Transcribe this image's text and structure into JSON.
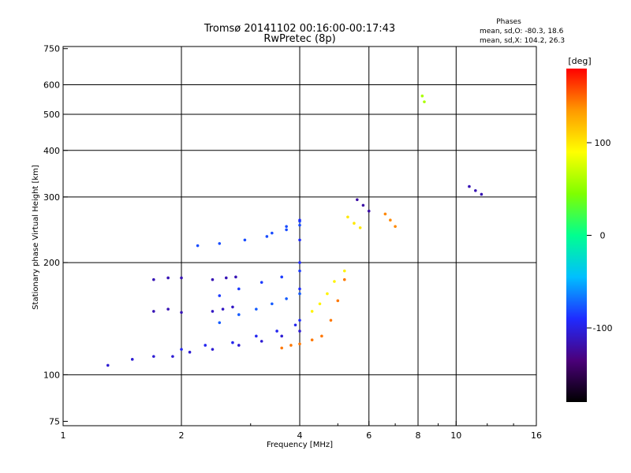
{
  "title_line1": "Tromsø 20141102 00:16:00-00:17:43",
  "title_line2": "RwPretec (8p)",
  "phase_box": {
    "heading": "Phases",
    "line1": "mean, sd,O: -80.3, 18.6",
    "line2": "mean, sd,X: 104.2, 26.3"
  },
  "chart_data": {
    "type": "scatter",
    "xlabel": "Frequency [MHz]",
    "ylabel": "Stationary phase Virtual Height [km]",
    "x_scale": "log",
    "y_scale": "log",
    "xlim": [
      1,
      16
    ],
    "ylim": [
      73,
      760
    ],
    "x_ticks": [
      1,
      2,
      4,
      6,
      8,
      10,
      16
    ],
    "x_tick_labels": [
      "1",
      "2",
      "4",
      "6",
      "8",
      "10",
      "16"
    ],
    "x_gridlines": [
      2,
      4,
      6,
      8,
      10
    ],
    "y_ticks": [
      75,
      100,
      200,
      300,
      400,
      500,
      600,
      750
    ],
    "y_tick_labels": [
      "75",
      "100",
      "200",
      "300",
      "400",
      "500",
      "600",
      "750"
    ],
    "y_gridlines": [
      100,
      200,
      300,
      400,
      500,
      600
    ],
    "grid": true,
    "colorbar": {
      "label": "[deg]",
      "range": [
        -180,
        180
      ],
      "ticks": [
        100,
        0,
        -100
      ],
      "tick_labels": [
        "100",
        "0",
        "-100"
      ],
      "colors": [
        "#000000",
        "#4b007a",
        "#1f2bff",
        "#00bfff",
        "#00ff90",
        "#7fff00",
        "#ffff00",
        "#ff9900",
        "#ff0000"
      ]
    },
    "traces": [
      {
        "name": "",
        "x": [
          1.3,
          1.5,
          1.7,
          1.9,
          2.1,
          2.4,
          2.8,
          3.2,
          3.6,
          4.0
        ],
        "y": [
          106,
          110,
          112,
          112,
          115,
          117,
          120,
          123,
          127,
          131
        ],
        "phase": -105
      },
      {
        "name": "",
        "x": [
          2.0,
          2.3,
          2.7,
          3.1,
          3.5,
          3.9
        ],
        "y": [
          117,
          120,
          122,
          127,
          131,
          136
        ],
        "phase": -95
      },
      {
        "name": "",
        "x": [
          2.5,
          2.8,
          3.1,
          3.4,
          3.7,
          4.0
        ],
        "y": [
          138,
          145,
          150,
          155,
          160,
          165
        ],
        "phase": -75
      },
      {
        "name": "",
        "x": [
          2.5,
          2.8,
          3.2,
          3.6,
          4.0
        ],
        "y": [
          163,
          170,
          177,
          183,
          190
        ],
        "phase": -85
      },
      {
        "name": "",
        "x": [
          2.2,
          2.5,
          2.9,
          3.3,
          3.7,
          4.0
        ],
        "y": [
          222,
          225,
          230,
          235,
          245,
          252
        ],
        "phase": -80
      },
      {
        "name": "",
        "x": [
          3.4,
          3.7,
          4.0
        ],
        "y": [
          240,
          250,
          258
        ],
        "phase": -80
      },
      {
        "name": "",
        "x": [
          1.7,
          1.85,
          2.0
        ],
        "y": [
          148,
          150,
          147
        ],
        "phase": -115
      },
      {
        "name": "",
        "x": [
          1.7,
          1.85,
          2.0
        ],
        "y": [
          180,
          182,
          182
        ],
        "phase": -115
      },
      {
        "name": "",
        "x": [
          2.4,
          2.6,
          2.75
        ],
        "y": [
          180,
          182,
          183
        ],
        "phase": -115
      },
      {
        "name": "",
        "x": [
          2.4,
          2.55,
          2.7
        ],
        "y": [
          148,
          150,
          152
        ],
        "phase": -110
      },
      {
        "name": "",
        "x": [
          3.6,
          3.8,
          4.0,
          4.3,
          4.55,
          4.8,
          5.0,
          5.2
        ],
        "y": [
          118,
          120,
          121,
          124,
          127,
          140,
          158,
          180
        ],
        "phase": 145
      },
      {
        "name": "",
        "x": [
          4.3,
          4.5,
          4.7,
          4.9,
          5.2
        ],
        "y": [
          148,
          155,
          165,
          178,
          190
        ],
        "phase": 95
      },
      {
        "name": "",
        "x": [
          5.3,
          5.5,
          5.7
        ],
        "y": [
          265,
          255,
          248
        ],
        "phase": 100
      },
      {
        "name": "",
        "x": [
          5.6,
          5.8,
          6.0
        ],
        "y": [
          295,
          285,
          275
        ],
        "phase": -120
      },
      {
        "name": "",
        "x": [
          6.6,
          6.8,
          7.0
        ],
        "y": [
          270,
          260,
          250
        ],
        "phase": 140
      },
      {
        "name": "",
        "x": [
          4.0,
          4.0,
          4.0,
          4.0,
          4.0
        ],
        "y": [
          140,
          170,
          200,
          230,
          260
        ],
        "phase": -90
      },
      {
        "name": "",
        "x": [
          10.8,
          11.2,
          11.6
        ],
        "y": [
          320,
          312,
          305
        ],
        "phase": -115
      },
      {
        "name": "",
        "x": [
          8.2,
          8.3
        ],
        "y": [
          560,
          540
        ],
        "phase": 60
      }
    ]
  }
}
